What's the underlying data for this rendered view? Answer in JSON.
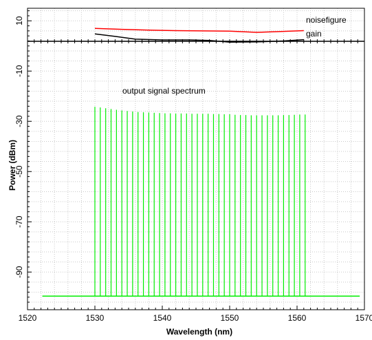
{
  "chart_data": {
    "type": "line",
    "xlabel": "Wavelength (nm)",
    "ylabel": "Power (dBm)",
    "xlim": [
      1520,
      1570
    ],
    "ylim": [
      -105,
      15
    ],
    "x_ticks": [
      1520,
      1530,
      1540,
      1550,
      1560,
      1570
    ],
    "y_ticks": [
      10,
      -10,
      -30,
      -50,
      -70,
      -90
    ],
    "x_tick_labels": [
      "1520",
      "1530",
      "1540",
      "1550",
      "1560",
      "1570"
    ],
    "y_tick_labels": [
      "10",
      "-10",
      "-30",
      "-50",
      "-70",
      "-90"
    ],
    "grid": "dotted",
    "annotations": {
      "spectrum": "output signal spectrum",
      "noisefigure": "noisefigure",
      "gain": "gain"
    },
    "series": [
      {
        "name": "noisefigure",
        "color": "#ff0000",
        "x": [
          1530,
          1534,
          1538,
          1542,
          1546,
          1550,
          1554,
          1557,
          1561
        ],
        "y": [
          7.0,
          6.6,
          6.3,
          6.1,
          6.0,
          5.9,
          5.4,
          5.7,
          6.1
        ]
      },
      {
        "name": "gain",
        "color": "#000000",
        "x": [
          1530,
          1533,
          1536,
          1540,
          1544,
          1547,
          1550,
          1554,
          1558,
          1561
        ],
        "y": [
          4.8,
          3.8,
          2.7,
          2.4,
          2.4,
          2.2,
          1.5,
          1.6,
          2.0,
          2.5
        ]
      },
      {
        "name": "output signal spectrum",
        "color": "#00ee00",
        "noise_floor": -99.6,
        "noise_floor_x": [
          1522.2,
          1569.3
        ],
        "channel_wavelengths": [
          1530.0,
          1530.8,
          1531.6,
          1532.4,
          1533.2,
          1534.0,
          1534.8,
          1535.6,
          1536.4,
          1537.2,
          1538.0,
          1538.8,
          1539.6,
          1540.4,
          1541.2,
          1542.0,
          1542.8,
          1543.6,
          1544.4,
          1545.2,
          1546.0,
          1546.8,
          1547.6,
          1548.4,
          1549.2,
          1550.0,
          1550.8,
          1551.6,
          1552.4,
          1553.2,
          1554.0,
          1554.8,
          1555.6,
          1556.4,
          1557.2,
          1558.0,
          1558.8,
          1559.6,
          1560.4,
          1561.2
        ],
        "channel_peaks": [
          -24.2,
          -24.5,
          -24.8,
          -25.1,
          -25.4,
          -25.7,
          -25.9,
          -26.1,
          -26.3,
          -26.4,
          -26.5,
          -26.6,
          -26.7,
          -26.8,
          -26.8,
          -26.9,
          -26.9,
          -26.9,
          -27.0,
          -27.0,
          -27.0,
          -27.0,
          -27.1,
          -27.1,
          -27.2,
          -27.2,
          -27.4,
          -27.5,
          -27.5,
          -27.6,
          -27.6,
          -27.6,
          -27.6,
          -27.6,
          -27.6,
          -27.5,
          -27.5,
          -27.4,
          -27.3,
          -27.3
        ]
      }
    ]
  }
}
